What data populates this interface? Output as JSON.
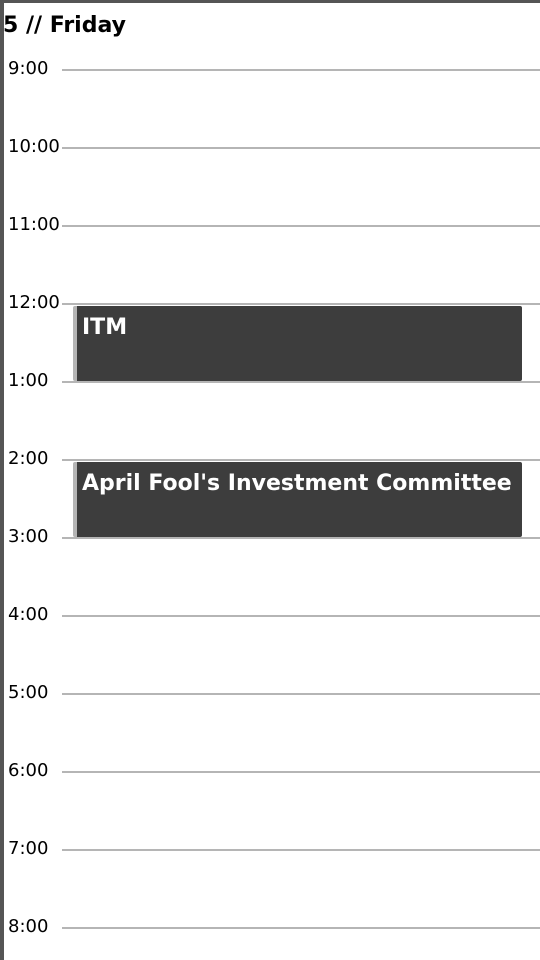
{
  "header": {
    "day_title": "5 // Friday"
  },
  "timeline": {
    "hours": [
      "9:00",
      "10:00",
      "11:00",
      "12:00",
      "1:00",
      "2:00",
      "3:00",
      "4:00",
      "5:00",
      "6:00",
      "7:00",
      "8:00"
    ]
  },
  "events": [
    {
      "title": "ITM",
      "start": "12:00",
      "end": "1:00"
    },
    {
      "title": "April Fool's Investment Committee",
      "start": "2:00",
      "end": "3:00"
    }
  ],
  "colors": {
    "event_background": "#3d3d3d",
    "event_text": "#ffffff",
    "grid_line": "#b5b5b5",
    "frame": "#555555"
  }
}
